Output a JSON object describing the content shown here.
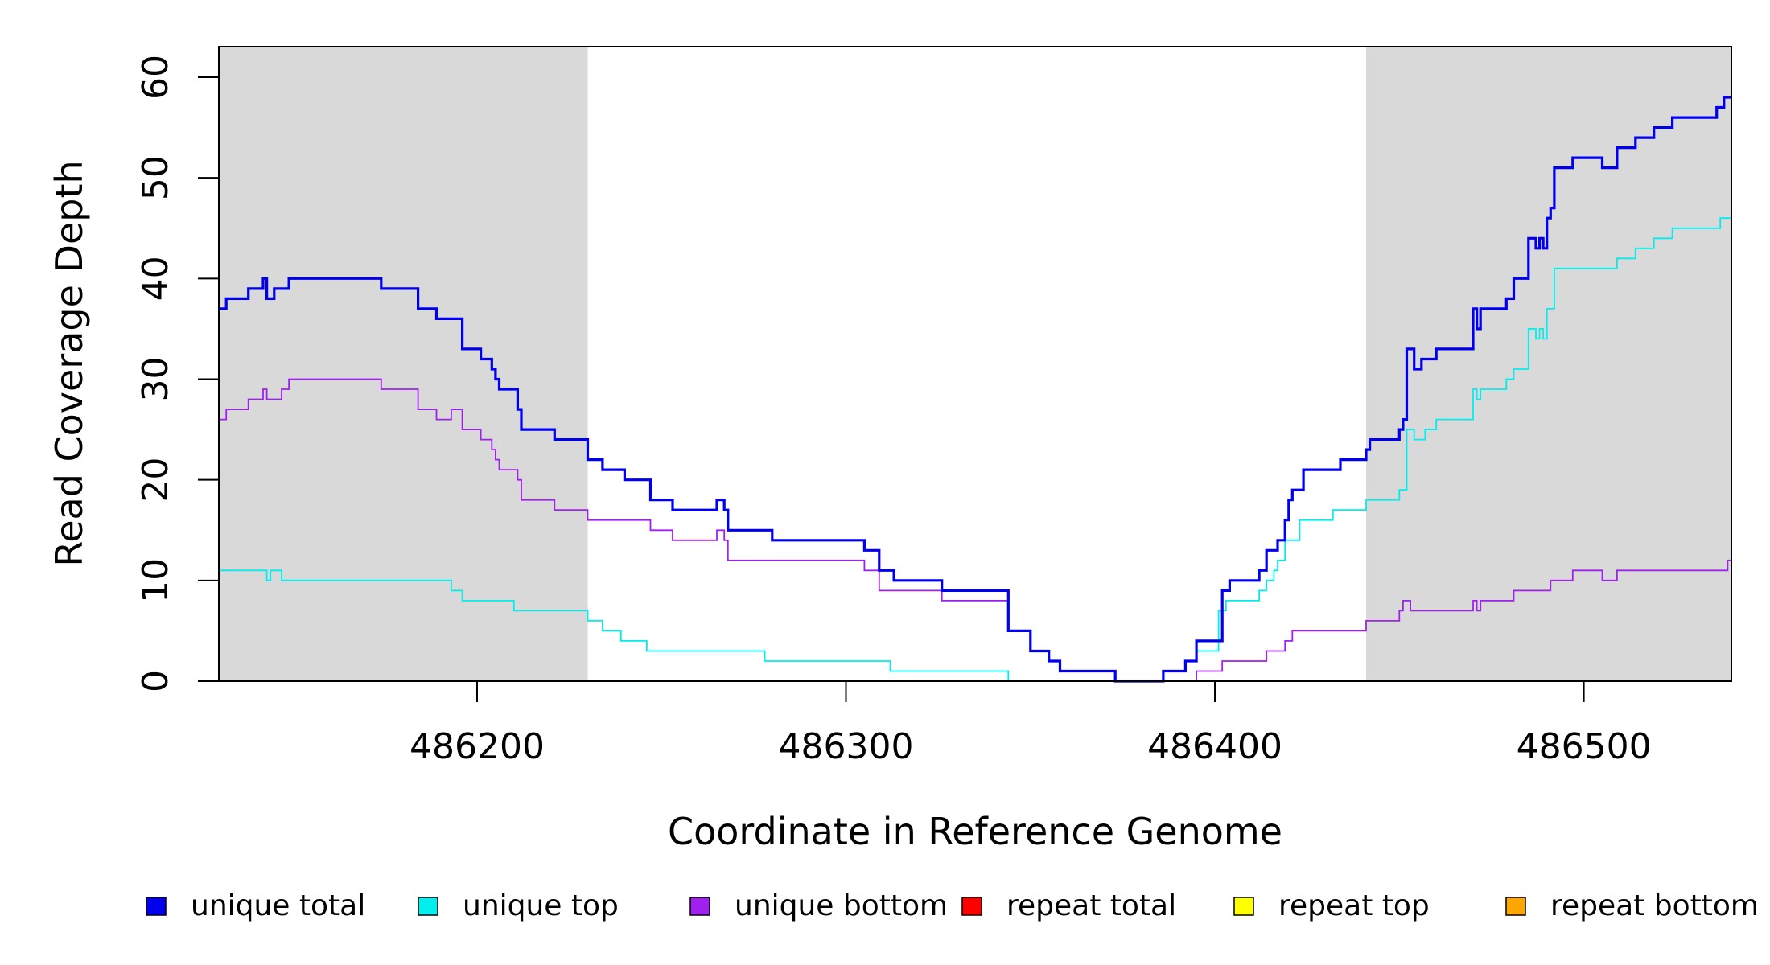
{
  "chart_data": {
    "type": "line",
    "title": "",
    "xlabel": "Coordinate in Reference Genome",
    "ylabel": "Read Coverage Depth",
    "xlim": [
      486130,
      486540
    ],
    "ylim": [
      0,
      60
    ],
    "x_ticks": [
      486200,
      486300,
      486400,
      486500
    ],
    "y_ticks": [
      0,
      10,
      20,
      30,
      40,
      50,
      60
    ],
    "shaded_regions": [
      {
        "from": 486130,
        "to": 486230
      },
      {
        "from": 486441,
        "to": 486540
      }
    ],
    "series": [
      {
        "name": "unique total",
        "color": "#0000ee",
        "points": [
          [
            486130,
            37
          ],
          [
            486132,
            38
          ],
          [
            486138,
            39
          ],
          [
            486142,
            40
          ],
          [
            486143,
            38
          ],
          [
            486145,
            39
          ],
          [
            486149,
            40
          ],
          [
            486174,
            39
          ],
          [
            486184,
            37
          ],
          [
            486189,
            36
          ],
          [
            486196,
            33
          ],
          [
            486201,
            32
          ],
          [
            486204,
            31
          ],
          [
            486205,
            30
          ],
          [
            486206,
            29
          ],
          [
            486211,
            27
          ],
          [
            486212,
            25
          ],
          [
            486221,
            24
          ],
          [
            486230,
            22
          ],
          [
            486234,
            21
          ],
          [
            486240,
            20
          ],
          [
            486247,
            18
          ],
          [
            486253,
            17
          ],
          [
            486265,
            18
          ],
          [
            486267,
            17
          ],
          [
            486268,
            15
          ],
          [
            486280,
            14
          ],
          [
            486305,
            13
          ],
          [
            486309,
            11
          ],
          [
            486313,
            10
          ],
          [
            486326,
            9
          ],
          [
            486344,
            5
          ],
          [
            486350,
            3
          ],
          [
            486355,
            2
          ],
          [
            486358,
            1
          ],
          [
            486373,
            0
          ],
          [
            486386,
            1
          ],
          [
            486392,
            2
          ],
          [
            486395,
            4
          ],
          [
            486402,
            9
          ],
          [
            486404,
            10
          ],
          [
            486412,
            11
          ],
          [
            486414,
            13
          ],
          [
            486417,
            14
          ],
          [
            486419,
            16
          ],
          [
            486420,
            18
          ],
          [
            486421,
            19
          ],
          [
            486424,
            21
          ],
          [
            486434,
            22
          ],
          [
            486441,
            23
          ],
          [
            486442,
            24
          ],
          [
            486450,
            25
          ],
          [
            486451,
            26
          ],
          [
            486452,
            33
          ],
          [
            486454,
            31
          ],
          [
            486456,
            32
          ],
          [
            486460,
            33
          ],
          [
            486470,
            37
          ],
          [
            486471,
            35
          ],
          [
            486472,
            37
          ],
          [
            486479,
            38
          ],
          [
            486481,
            40
          ],
          [
            486485,
            44
          ],
          [
            486487,
            43
          ],
          [
            486488,
            44
          ],
          [
            486489,
            43
          ],
          [
            486490,
            46
          ],
          [
            486491,
            47
          ],
          [
            486492,
            51
          ],
          [
            486497,
            52
          ],
          [
            486505,
            51
          ],
          [
            486509,
            53
          ],
          [
            486514,
            54
          ],
          [
            486519,
            55
          ],
          [
            486524,
            56
          ],
          [
            486536,
            57
          ],
          [
            486538,
            58
          ],
          [
            486540,
            58
          ]
        ]
      },
      {
        "name": "unique top",
        "color": "#00eeee",
        "points": [
          [
            486130,
            11
          ],
          [
            486143,
            10
          ],
          [
            486144,
            11
          ],
          [
            486147,
            10
          ],
          [
            486193,
            9
          ],
          [
            486196,
            8
          ],
          [
            486210,
            7
          ],
          [
            486230,
            6
          ],
          [
            486234,
            5
          ],
          [
            486239,
            4
          ],
          [
            486246,
            3
          ],
          [
            486278,
            2
          ],
          [
            486312,
            1
          ],
          [
            486344,
            0
          ],
          [
            486386,
            1
          ],
          [
            486392,
            2
          ],
          [
            486395,
            3
          ],
          [
            486401,
            7
          ],
          [
            486403,
            8
          ],
          [
            486412,
            9
          ],
          [
            486414,
            10
          ],
          [
            486416,
            11
          ],
          [
            486417,
            12
          ],
          [
            486419,
            14
          ],
          [
            486423,
            16
          ],
          [
            486432,
            17
          ],
          [
            486441,
            18
          ],
          [
            486450,
            19
          ],
          [
            486452,
            25
          ],
          [
            486454,
            24
          ],
          [
            486457,
            25
          ],
          [
            486460,
            26
          ],
          [
            486470,
            29
          ],
          [
            486471,
            28
          ],
          [
            486472,
            29
          ],
          [
            486479,
            30
          ],
          [
            486481,
            31
          ],
          [
            486485,
            35
          ],
          [
            486487,
            34
          ],
          [
            486488,
            35
          ],
          [
            486489,
            34
          ],
          [
            486490,
            37
          ],
          [
            486492,
            41
          ],
          [
            486509,
            42
          ],
          [
            486514,
            43
          ],
          [
            486519,
            44
          ],
          [
            486524,
            45
          ],
          [
            486537,
            46
          ],
          [
            486540,
            46
          ]
        ]
      },
      {
        "name": "unique bottom",
        "color": "#a020f0",
        "points": [
          [
            486130,
            26
          ],
          [
            486132,
            27
          ],
          [
            486138,
            28
          ],
          [
            486142,
            29
          ],
          [
            486143,
            28
          ],
          [
            486147,
            29
          ],
          [
            486149,
            30
          ],
          [
            486174,
            29
          ],
          [
            486184,
            27
          ],
          [
            486189,
            26
          ],
          [
            486193,
            27
          ],
          [
            486196,
            25
          ],
          [
            486201,
            24
          ],
          [
            486204,
            23
          ],
          [
            486205,
            22
          ],
          [
            486206,
            21
          ],
          [
            486211,
            20
          ],
          [
            486212,
            18
          ],
          [
            486221,
            17
          ],
          [
            486230,
            16
          ],
          [
            486247,
            15
          ],
          [
            486253,
            14
          ],
          [
            486265,
            15
          ],
          [
            486267,
            14
          ],
          [
            486268,
            12
          ],
          [
            486305,
            11
          ],
          [
            486309,
            9
          ],
          [
            486326,
            8
          ],
          [
            486344,
            5
          ],
          [
            486350,
            3
          ],
          [
            486355,
            2
          ],
          [
            486358,
            1
          ],
          [
            486373,
            0
          ],
          [
            486386,
            0
          ],
          [
            486395,
            1
          ],
          [
            486402,
            2
          ],
          [
            486414,
            3
          ],
          [
            486419,
            4
          ],
          [
            486421,
            5
          ],
          [
            486441,
            6
          ],
          [
            486450,
            7
          ],
          [
            486451,
            8
          ],
          [
            486453,
            7
          ],
          [
            486470,
            8
          ],
          [
            486471,
            7
          ],
          [
            486472,
            8
          ],
          [
            486481,
            9
          ],
          [
            486491,
            10
          ],
          [
            486497,
            11
          ],
          [
            486505,
            10
          ],
          [
            486509,
            11
          ],
          [
            486539,
            12
          ],
          [
            486540,
            12
          ]
        ]
      },
      {
        "name": "repeat total",
        "color": "#ff0000",
        "points": [
          [
            486130,
            0
          ],
          [
            486540,
            0
          ]
        ]
      },
      {
        "name": "repeat top",
        "color": "#ffff00",
        "points": [
          [
            486130,
            0
          ],
          [
            486540,
            0
          ]
        ]
      },
      {
        "name": "repeat bottom",
        "color": "#ffa500",
        "points": [
          [
            486130,
            0
          ],
          [
            486540,
            0
          ]
        ]
      }
    ]
  }
}
